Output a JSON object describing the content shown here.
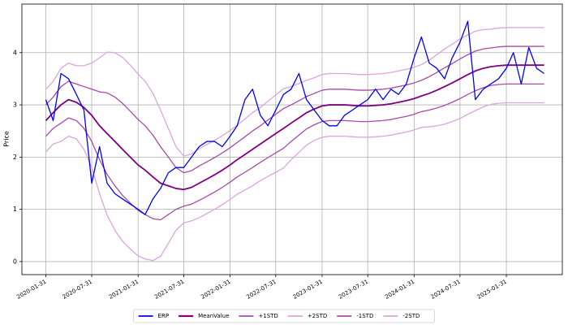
{
  "chart_data": {
    "type": "line",
    "y_label": "Price",
    "xlim": [
      "2019-10-28",
      "2025-09-10"
    ],
    "xticks": [
      "2020-01-31",
      "2020-07-31",
      "2021-01-31",
      "2021-07-31",
      "2022-01-31",
      "2022-07-31",
      "2023-01-31",
      "2023-07-31",
      "2024-01-31",
      "2024-07-31",
      "2025-01-31"
    ],
    "ylim": [
      -0.25,
      4.93
    ],
    "yticks": [
      0,
      1,
      2,
      3,
      4
    ],
    "grid": true,
    "legend": "bottom",
    "x": [
      "2020-01-31",
      "2020-02-29",
      "2020-03-31",
      "2020-04-30",
      "2020-05-31",
      "2020-06-30",
      "2020-07-31",
      "2020-08-31",
      "2020-09-30",
      "2020-10-31",
      "2020-11-30",
      "2020-12-31",
      "2021-01-31",
      "2021-02-28",
      "2021-03-31",
      "2021-04-30",
      "2021-05-31",
      "2021-06-30",
      "2021-07-31",
      "2021-08-31",
      "2021-09-30",
      "2021-10-31",
      "2021-11-30",
      "2021-12-31",
      "2022-01-31",
      "2022-02-28",
      "2022-03-31",
      "2022-04-30",
      "2022-05-31",
      "2022-06-30",
      "2022-07-31",
      "2022-08-31",
      "2022-09-30",
      "2022-10-31",
      "2022-11-30",
      "2022-12-31",
      "2023-01-31",
      "2023-02-28",
      "2023-03-31",
      "2023-04-30",
      "2023-05-31",
      "2023-06-30",
      "2023-07-31",
      "2023-08-31",
      "2023-09-30",
      "2023-10-31",
      "2023-11-30",
      "2023-12-31",
      "2024-01-31",
      "2024-02-29",
      "2024-03-31",
      "2024-04-30",
      "2024-05-31",
      "2024-06-30",
      "2024-07-31",
      "2024-08-31",
      "2024-09-30",
      "2024-10-31",
      "2024-11-30",
      "2024-12-31",
      "2025-01-31",
      "2025-02-28",
      "2025-03-31",
      "2025-04-30",
      "2025-05-31",
      "2025-06-30"
    ],
    "series": [
      {
        "name": "ERP",
        "color": "#0000ff",
        "width": 1.3,
        "values": [
          3.1,
          2.7,
          3.6,
          3.5,
          3.2,
          2.9,
          1.5,
          2.2,
          1.5,
          1.3,
          1.2,
          1.1,
          1.0,
          0.9,
          1.2,
          1.4,
          1.7,
          1.8,
          1.8,
          2.0,
          2.2,
          2.3,
          2.3,
          2.2,
          2.4,
          2.6,
          3.1,
          3.3,
          2.8,
          2.6,
          2.9,
          3.2,
          3.3,
          3.6,
          3.1,
          2.9,
          2.7,
          2.6,
          2.6,
          2.8,
          2.9,
          3.0,
          3.1,
          3.3,
          3.1,
          3.3,
          3.2,
          3.4,
          3.9,
          4.3,
          3.8,
          3.7,
          3.5,
          3.9,
          4.2,
          4.6,
          3.1,
          3.3,
          3.4,
          3.5,
          3.7,
          4.0,
          3.4,
          4.1,
          3.7,
          3.6
        ]
      },
      {
        "name": "MeanValue",
        "color": "#800080",
        "width": 1.8,
        "values": [
          2.7,
          2.85,
          3.0,
          3.1,
          3.05,
          2.95,
          2.8,
          2.6,
          2.45,
          2.3,
          2.15,
          2.0,
          1.85,
          1.75,
          1.62,
          1.5,
          1.45,
          1.4,
          1.38,
          1.42,
          1.5,
          1.58,
          1.66,
          1.75,
          1.85,
          1.95,
          2.05,
          2.15,
          2.25,
          2.35,
          2.45,
          2.55,
          2.65,
          2.75,
          2.85,
          2.92,
          2.98,
          3.0,
          3.0,
          3.0,
          2.99,
          2.98,
          2.98,
          2.99,
          3.0,
          3.02,
          3.05,
          3.08,
          3.12,
          3.17,
          3.22,
          3.28,
          3.35,
          3.42,
          3.5,
          3.58,
          3.65,
          3.7,
          3.73,
          3.75,
          3.76,
          3.76,
          3.76,
          3.76,
          3.76,
          3.76
        ]
      },
      {
        "name": "+1STD",
        "color": "#a64ca6",
        "width": 1.3,
        "values": [
          3.0,
          3.15,
          3.35,
          3.45,
          3.4,
          3.35,
          3.3,
          3.25,
          3.23,
          3.15,
          3.03,
          2.88,
          2.72,
          2.6,
          2.42,
          2.2,
          2.0,
          1.8,
          1.7,
          1.74,
          1.83,
          1.91,
          1.99,
          2.08,
          2.18,
          2.28,
          2.39,
          2.5,
          2.6,
          2.71,
          2.82,
          2.93,
          3.0,
          3.08,
          3.16,
          3.22,
          3.28,
          3.3,
          3.3,
          3.3,
          3.29,
          3.28,
          3.28,
          3.29,
          3.3,
          3.32,
          3.35,
          3.38,
          3.42,
          3.47,
          3.54,
          3.62,
          3.71,
          3.79,
          3.88,
          3.96,
          4.03,
          4.07,
          4.09,
          4.11,
          4.12,
          4.12,
          4.12,
          4.12,
          4.12,
          4.12
        ]
      },
      {
        "name": "+2STD",
        "color": "#dba6db",
        "width": 1.3,
        "values": [
          3.3,
          3.45,
          3.7,
          3.8,
          3.75,
          3.75,
          3.8,
          3.9,
          4.01,
          4.0,
          3.91,
          3.76,
          3.59,
          3.45,
          3.22,
          2.9,
          2.55,
          2.2,
          2.02,
          2.06,
          2.16,
          2.24,
          2.32,
          2.41,
          2.51,
          2.61,
          2.73,
          2.85,
          2.95,
          3.07,
          3.19,
          3.31,
          3.35,
          3.41,
          3.47,
          3.52,
          3.58,
          3.6,
          3.6,
          3.6,
          3.59,
          3.58,
          3.58,
          3.59,
          3.6,
          3.62,
          3.65,
          3.68,
          3.72,
          3.77,
          3.86,
          3.96,
          4.07,
          4.16,
          4.26,
          4.34,
          4.41,
          4.44,
          4.45,
          4.47,
          4.48,
          4.48,
          4.48,
          4.48,
          4.48,
          4.48
        ]
      },
      {
        "name": "-1STD",
        "color": "#a64ca6",
        "width": 1.3,
        "values": [
          2.4,
          2.55,
          2.65,
          2.75,
          2.7,
          2.55,
          2.3,
          1.95,
          1.67,
          1.45,
          1.27,
          1.12,
          0.98,
          0.9,
          0.82,
          0.8,
          0.9,
          1.0,
          1.06,
          1.1,
          1.17,
          1.25,
          1.33,
          1.42,
          1.52,
          1.62,
          1.71,
          1.8,
          1.9,
          1.99,
          2.08,
          2.17,
          2.3,
          2.42,
          2.54,
          2.62,
          2.68,
          2.7,
          2.7,
          2.7,
          2.69,
          2.68,
          2.68,
          2.69,
          2.7,
          2.72,
          2.75,
          2.78,
          2.82,
          2.87,
          2.9,
          2.94,
          2.99,
          3.05,
          3.12,
          3.2,
          3.27,
          3.33,
          3.37,
          3.39,
          3.4,
          3.4,
          3.4,
          3.4,
          3.4,
          3.4
        ]
      },
      {
        "name": "-2STD",
        "color": "#dba6db",
        "width": 1.3,
        "values": [
          2.1,
          2.25,
          2.3,
          2.4,
          2.35,
          2.15,
          1.8,
          1.3,
          0.89,
          0.6,
          0.39,
          0.24,
          0.11,
          0.05,
          0.02,
          0.1,
          0.35,
          0.6,
          0.74,
          0.78,
          0.84,
          0.92,
          1.0,
          1.09,
          1.19,
          1.29,
          1.37,
          1.45,
          1.55,
          1.63,
          1.71,
          1.79,
          1.95,
          2.09,
          2.23,
          2.32,
          2.38,
          2.4,
          2.4,
          2.4,
          2.39,
          2.38,
          2.38,
          2.39,
          2.4,
          2.42,
          2.45,
          2.48,
          2.52,
          2.57,
          2.58,
          2.6,
          2.63,
          2.68,
          2.74,
          2.82,
          2.89,
          2.96,
          3.01,
          3.03,
          3.04,
          3.04,
          3.04,
          3.04,
          3.04,
          3.04
        ]
      }
    ]
  }
}
